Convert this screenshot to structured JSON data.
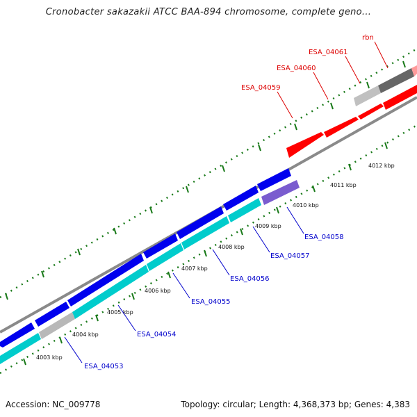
{
  "title": "Cronobacter sakazakii ATCC BAA-894 chromosome, complete geno...",
  "footer": {
    "accession": "Accession: NC_009778",
    "summary": "Topology: circular; Length: 4,368,373 bp; Genes: 4,383"
  },
  "colors": {
    "backbone": "#8a8a8a",
    "tick": "#1a7a1a",
    "forward_gene": "#ff0000",
    "reverse_gene": "#0000ee",
    "cds": "#00cccc",
    "pseudo": "#b8b8b8",
    "dark_gene": "#666666",
    "purple_gene": "#7a5ccf",
    "forward_label": "#dd0000",
    "reverse_label": "#0000cc"
  },
  "ticks": [
    "4003 kbp",
    "4004 kbp",
    "4005 kbp",
    "4006 kbp",
    "4007 kbp",
    "4008 kbp",
    "4009 kbp",
    "4010 kbp",
    "4011 kbp",
    "4012 kbp"
  ],
  "forward_genes": [
    "ESA_04059",
    "ESA_04060",
    "ESA_04061",
    "rbn"
  ],
  "reverse_genes": [
    "ESA_04053",
    "ESA_04054",
    "ESA_04055",
    "ESA_04056",
    "ESA_04057",
    "ESA_04058"
  ]
}
